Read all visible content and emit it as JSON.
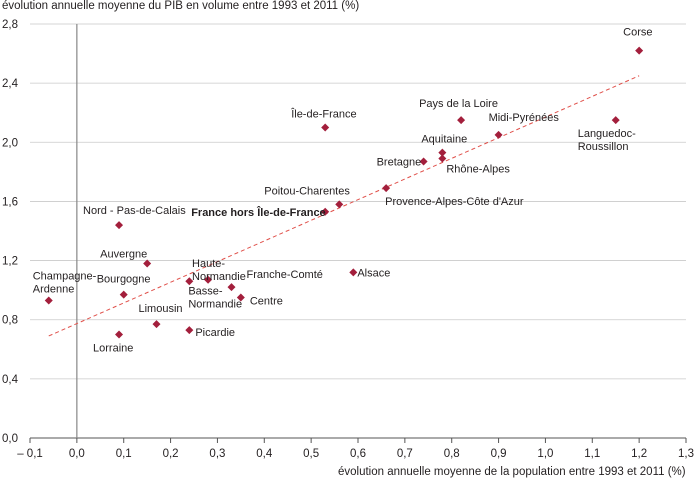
{
  "chart_data": {
    "type": "scatter",
    "title": "",
    "ylabel": "évolution annuelle moyenne du PIB en volume entre 1993 et 2011 (%)",
    "xlabel": "évolution annuelle moyenne de la population entre 1993 et 2011 (%)",
    "xlim": [
      -0.1,
      1.3
    ],
    "ylim": [
      0.0,
      2.8
    ],
    "xticks": [
      -0.1,
      0.0,
      0.1,
      0.2,
      0.3,
      0.4,
      0.5,
      0.6,
      0.7,
      0.8,
      0.9,
      1.0,
      1.1,
      1.2,
      1.3
    ],
    "xtick_labels": [
      "– 0,1",
      "0,0",
      "0,1",
      "0,2",
      "0,3",
      "0,4",
      "0,5",
      "0,6",
      "0,7",
      "0,8",
      "0,9",
      "1,0",
      "1,1",
      "1,2",
      "1,3"
    ],
    "yticks": [
      0.0,
      0.4,
      0.8,
      1.2,
      1.6,
      2.0,
      2.4,
      2.8
    ],
    "ytick_labels": [
      "0,0",
      "0,4",
      "0,8",
      "1,2",
      "1,6",
      "2,0",
      "2,4",
      "2,8"
    ],
    "grid": "horizontal",
    "marker_color": "#a31f3c",
    "trendline": {
      "color": "#e0504a",
      "style": "dashed",
      "x": [
        -0.06,
        1.2
      ],
      "y": [
        0.69,
        2.45
      ]
    },
    "points": [
      {
        "label": [
          "Corse"
        ],
        "x": 1.2,
        "y": 2.62
      },
      {
        "label": [
          "Languedoc-",
          "Roussillon"
        ],
        "x": 1.15,
        "y": 2.15
      },
      {
        "label": [
          "Midi-Pyrénées"
        ],
        "x": 0.9,
        "y": 2.05
      },
      {
        "label": [
          "Pays de la Loire"
        ],
        "x": 0.82,
        "y": 2.15
      },
      {
        "label": [
          "Aquitaine"
        ],
        "x": 0.78,
        "y": 1.93
      },
      {
        "label": [
          "Rhône-Alpes"
        ],
        "x": 0.78,
        "y": 1.89
      },
      {
        "label": [
          "Bretagne"
        ],
        "x": 0.74,
        "y": 1.87
      },
      {
        "label": [
          "Île-de-France"
        ],
        "x": 0.53,
        "y": 2.1
      },
      {
        "label": [
          "Provence-Alpes-Côte d'Azur"
        ],
        "x": 0.66,
        "y": 1.69
      },
      {
        "label": [
          "Poitou-Charentes"
        ],
        "x": 0.56,
        "y": 1.58
      },
      {
        "label": [
          "France hors Île-de-France"
        ],
        "x": 0.53,
        "y": 1.53,
        "bold": true
      },
      {
        "label": [
          "Alsace"
        ],
        "x": 0.59,
        "y": 1.12
      },
      {
        "label": [
          "Nord - Pas-de-Calais"
        ],
        "x": 0.09,
        "y": 1.44
      },
      {
        "label": [
          "Auvergne"
        ],
        "x": 0.15,
        "y": 1.18
      },
      {
        "label": [
          "Haute-",
          "Normandie"
        ],
        "x": 0.28,
        "y": 1.07
      },
      {
        "label": [
          "Basse-",
          "Normandie"
        ],
        "x": 0.24,
        "y": 1.06
      },
      {
        "label": [
          "Franche-Comté"
        ],
        "x": 0.33,
        "y": 1.02
      },
      {
        "label": [
          "Centre"
        ],
        "x": 0.35,
        "y": 0.95
      },
      {
        "label": [
          "Bourgogne"
        ],
        "x": 0.1,
        "y": 0.97
      },
      {
        "label": [
          "Champagne-",
          "Ardenne"
        ],
        "x": -0.06,
        "y": 0.93
      },
      {
        "label": [
          "Limousin"
        ],
        "x": 0.17,
        "y": 0.77
      },
      {
        "label": [
          "Picardie"
        ],
        "x": 0.24,
        "y": 0.73
      },
      {
        "label": [
          "Lorraine"
        ],
        "x": 0.09,
        "y": 0.7
      }
    ]
  }
}
